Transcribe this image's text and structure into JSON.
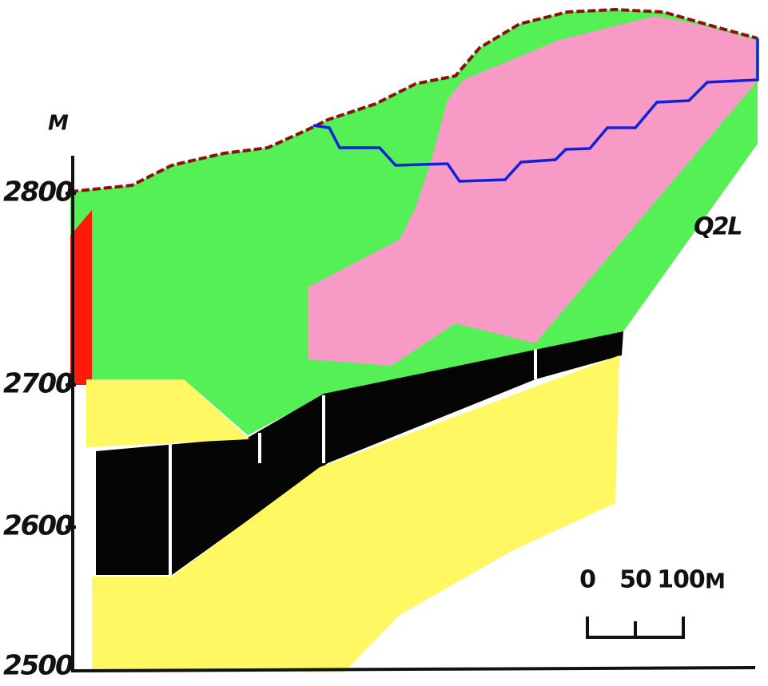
{
  "axis": {
    "unit": "M",
    "labels": [
      "2800",
      "2700",
      "2600",
      "2500"
    ]
  },
  "scale_bar": {
    "labels": [
      "0",
      "50",
      "100"
    ],
    "unit": "M"
  },
  "annotation": "Q2L"
}
